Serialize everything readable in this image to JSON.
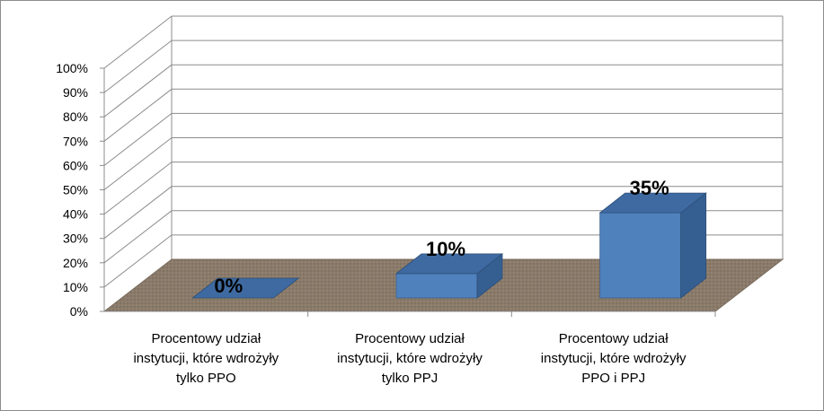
{
  "chart_data": {
    "type": "bar",
    "categories": [
      [
        "Procentowy udział",
        "instytucji, które wdrożyły",
        "tylko PPO"
      ],
      [
        "Procentowy udział",
        "instytucji, które wdrożyły",
        "tylko PPJ"
      ],
      [
        "Procentowy udział",
        "instytucji, które wdrożyły",
        "PPO i PPJ"
      ]
    ],
    "values": [
      0,
      10,
      35
    ],
    "data_labels": [
      "0%",
      "10%",
      "35%"
    ],
    "y_ticks": [
      "0%",
      "10%",
      "20%",
      "30%",
      "40%",
      "50%",
      "60%",
      "70%",
      "80%",
      "90%",
      "100%"
    ],
    "ylim": [
      0,
      100
    ],
    "unit": "%",
    "grid": true,
    "three_d": true,
    "colors": {
      "bar_front": "#4f81bd",
      "bar_top": "#3e6aa1",
      "bar_side": "#365f91",
      "floor": "#8a7a6a",
      "gridline": "#8c8c8c"
    }
  }
}
